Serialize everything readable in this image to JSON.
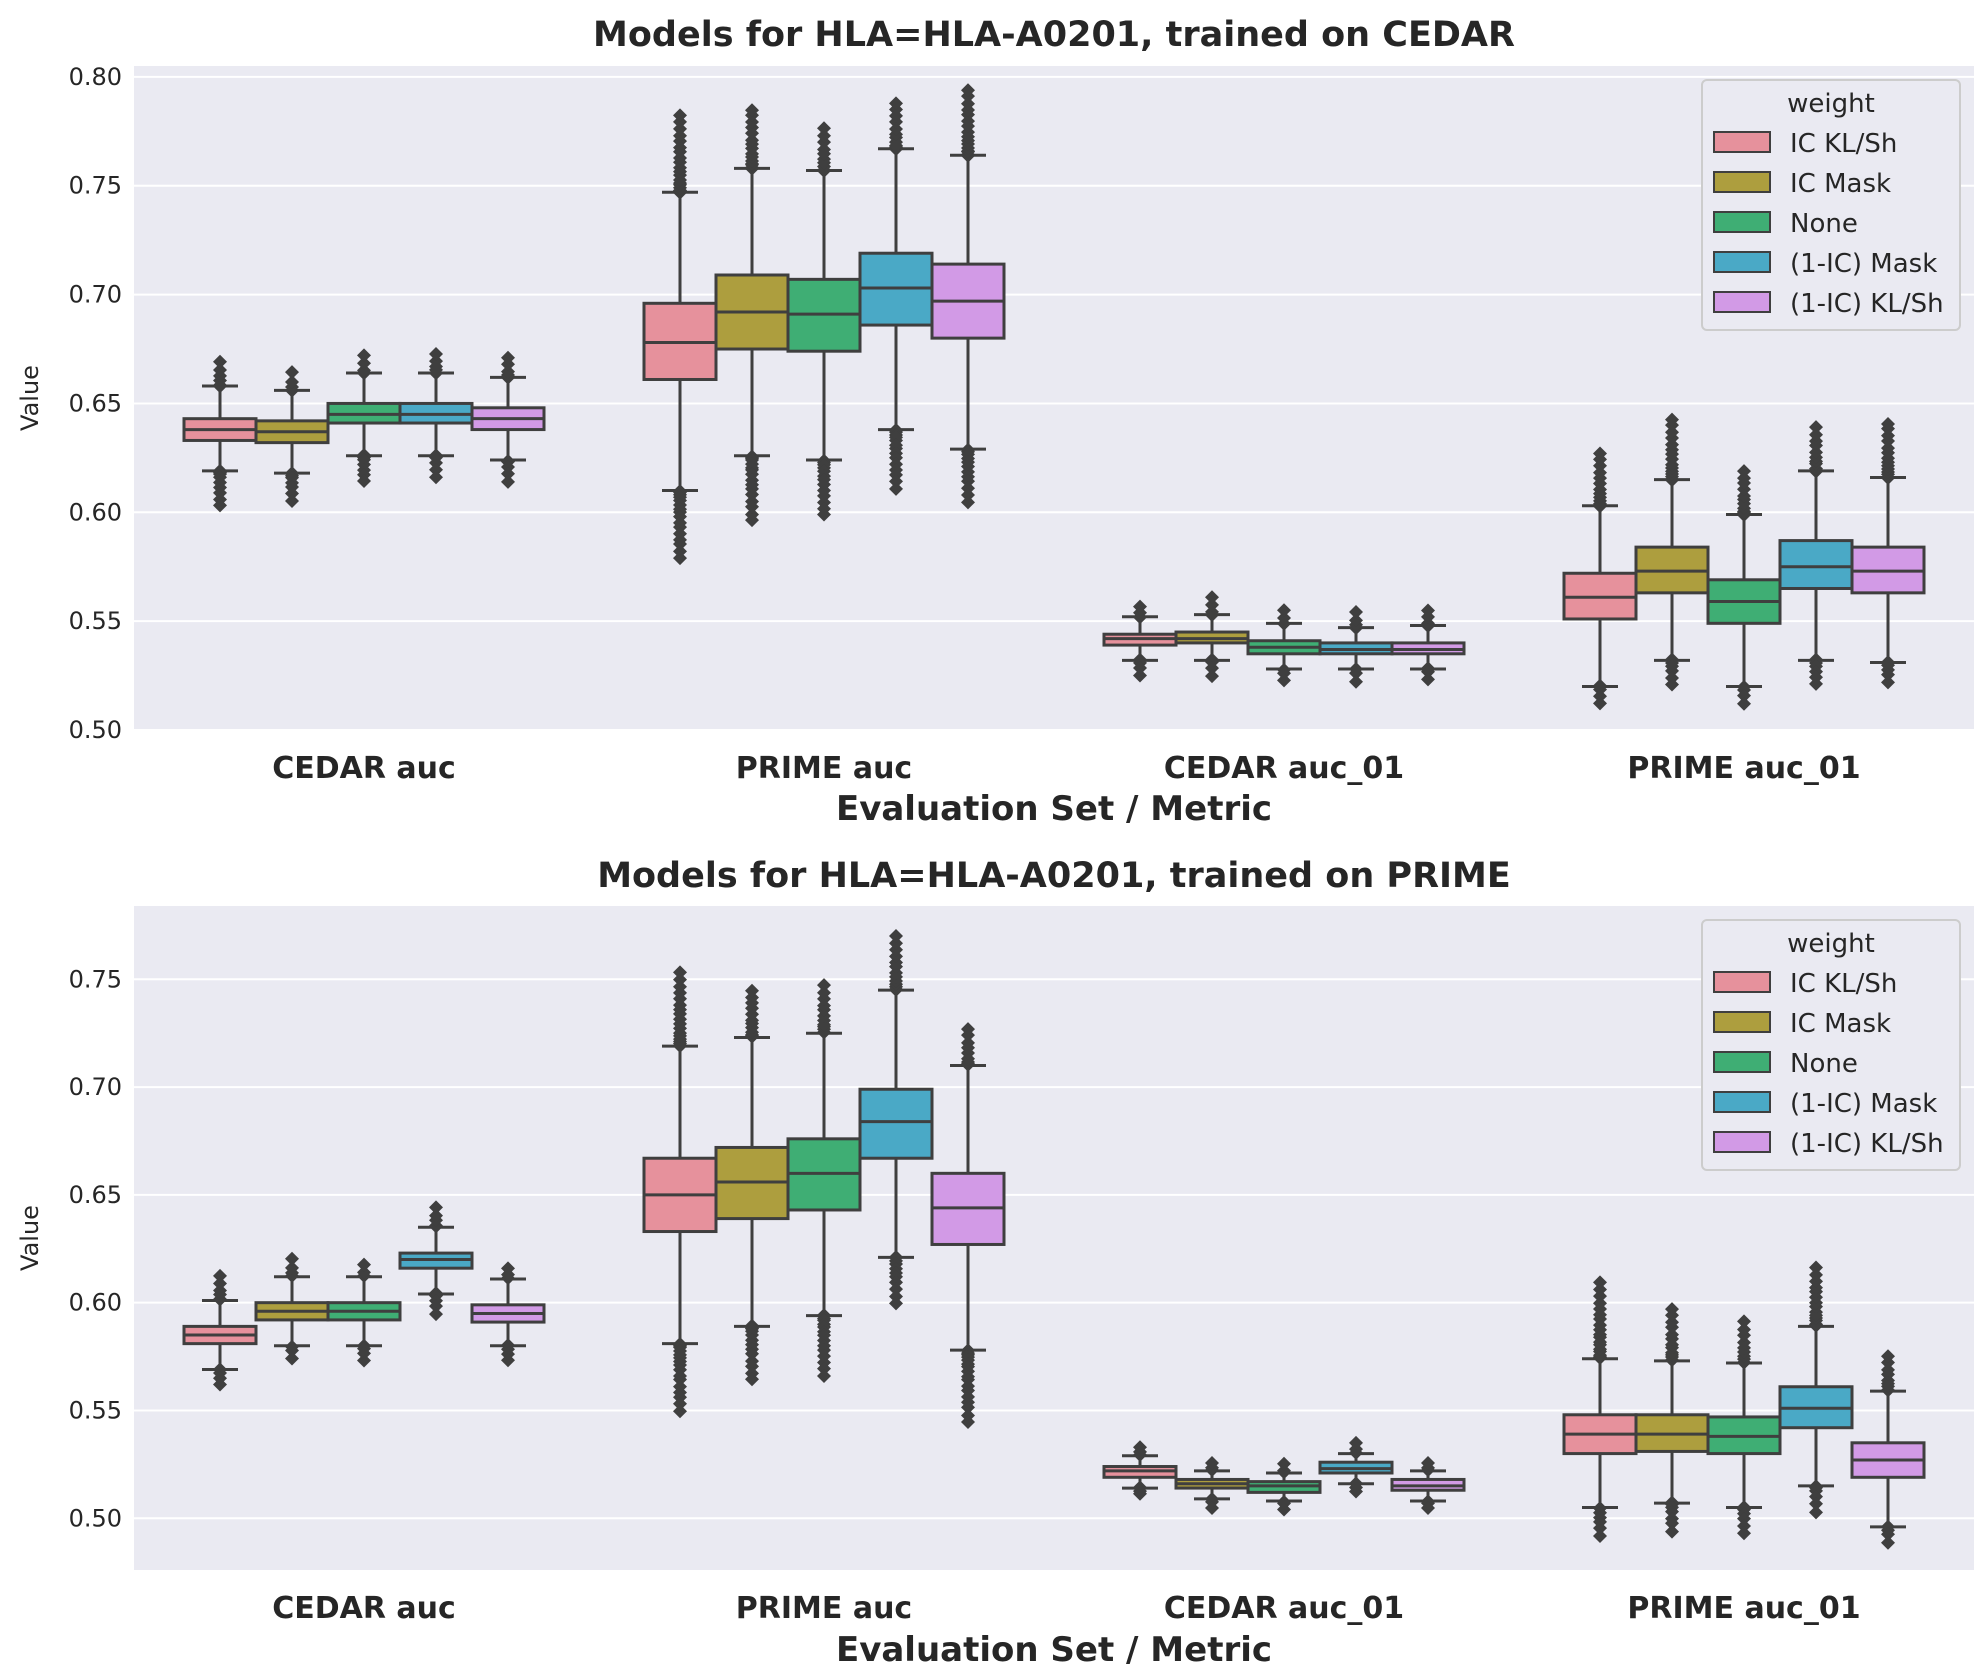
{
  "figure": {
    "background": "#ffffff",
    "axes_background": "#eaeaf2",
    "grid_color": "#ffffff",
    "line_color": "#3f3f3f"
  },
  "legend": {
    "title": "weight",
    "placement": "upper right",
    "entries": [
      {
        "label": "IC KL/Sh",
        "color": "#e6919c"
      },
      {
        "label": "IC Mask",
        "color": "#ad9e3e"
      },
      {
        "label": "None",
        "color": "#3fae74"
      },
      {
        "label": "(1-IC) Mask",
        "color": "#4aa9c6"
      },
      {
        "label": "(1-IC) KL/Sh",
        "color": "#d29ae6"
      }
    ]
  },
  "chart_data": [
    {
      "type": "box",
      "title": "Models for HLA=HLA-A0201, trained on CEDAR",
      "xlabel": "Evaluation Set / Metric",
      "ylabel": "Value",
      "ylim": [
        0.5,
        0.805
      ],
      "yticks": [
        "0.50",
        "0.55",
        "0.60",
        "0.65",
        "0.70",
        "0.75",
        "0.80"
      ],
      "grid": true,
      "categories": [
        "CEDAR auc",
        "PRIME auc",
        "CEDAR auc_01",
        "PRIME auc_01"
      ],
      "series": [
        {
          "name": "IC KL/Sh",
          "boxes": [
            {
              "q1": 0.633,
              "median": 0.638,
              "q3": 0.643,
              "whisker_low": 0.619,
              "whisker_high": 0.658,
              "flier_min": 0.603,
              "flier_max": 0.669
            },
            {
              "q1": 0.661,
              "median": 0.678,
              "q3": 0.696,
              "whisker_low": 0.61,
              "whisker_high": 0.747,
              "flier_min": 0.579,
              "flier_max": 0.782
            },
            {
              "q1": 0.539,
              "median": 0.542,
              "q3": 0.544,
              "whisker_low": 0.532,
              "whisker_high": 0.552,
              "flier_min": 0.525,
              "flier_max": 0.557
            },
            {
              "q1": 0.551,
              "median": 0.561,
              "q3": 0.572,
              "whisker_low": 0.52,
              "whisker_high": 0.603,
              "flier_min": 0.512,
              "flier_max": 0.627
            }
          ]
        },
        {
          "name": "IC Mask",
          "boxes": [
            {
              "q1": 0.632,
              "median": 0.637,
              "q3": 0.642,
              "whisker_low": 0.618,
              "whisker_high": 0.656,
              "flier_min": 0.605,
              "flier_max": 0.664
            },
            {
              "q1": 0.675,
              "median": 0.692,
              "q3": 0.709,
              "whisker_low": 0.626,
              "whisker_high": 0.758,
              "flier_min": 0.596,
              "flier_max": 0.785
            },
            {
              "q1": 0.54,
              "median": 0.542,
              "q3": 0.545,
              "whisker_low": 0.532,
              "whisker_high": 0.553,
              "flier_min": 0.525,
              "flier_max": 0.561
            },
            {
              "q1": 0.563,
              "median": 0.573,
              "q3": 0.584,
              "whisker_low": 0.532,
              "whisker_high": 0.615,
              "flier_min": 0.521,
              "flier_max": 0.643
            }
          ]
        },
        {
          "name": "None",
          "boxes": [
            {
              "q1": 0.641,
              "median": 0.645,
              "q3": 0.65,
              "whisker_low": 0.626,
              "whisker_high": 0.664,
              "flier_min": 0.614,
              "flier_max": 0.672
            },
            {
              "q1": 0.674,
              "median": 0.691,
              "q3": 0.707,
              "whisker_low": 0.624,
              "whisker_high": 0.757,
              "flier_min": 0.599,
              "flier_max": 0.776
            },
            {
              "q1": 0.535,
              "median": 0.538,
              "q3": 0.541,
              "whisker_low": 0.528,
              "whisker_high": 0.549,
              "flier_min": 0.523,
              "flier_max": 0.555
            },
            {
              "q1": 0.549,
              "median": 0.559,
              "q3": 0.569,
              "whisker_low": 0.52,
              "whisker_high": 0.599,
              "flier_min": 0.512,
              "flier_max": 0.619
            }
          ]
        },
        {
          "name": "(1-IC) Mask",
          "boxes": [
            {
              "q1": 0.641,
              "median": 0.645,
              "q3": 0.65,
              "whisker_low": 0.626,
              "whisker_high": 0.664,
              "flier_min": 0.616,
              "flier_max": 0.673
            },
            {
              "q1": 0.686,
              "median": 0.703,
              "q3": 0.719,
              "whisker_low": 0.638,
              "whisker_high": 0.767,
              "flier_min": 0.611,
              "flier_max": 0.788
            },
            {
              "q1": 0.535,
              "median": 0.537,
              "q3": 0.54,
              "whisker_low": 0.528,
              "whisker_high": 0.547,
              "flier_min": 0.522,
              "flier_max": 0.554
            },
            {
              "q1": 0.565,
              "median": 0.575,
              "q3": 0.587,
              "whisker_low": 0.532,
              "whisker_high": 0.619,
              "flier_min": 0.521,
              "flier_max": 0.639
            }
          ]
        },
        {
          "name": "(1-IC) KL/Sh",
          "boxes": [
            {
              "q1": 0.638,
              "median": 0.643,
              "q3": 0.648,
              "whisker_low": 0.624,
              "whisker_high": 0.662,
              "flier_min": 0.614,
              "flier_max": 0.671
            },
            {
              "q1": 0.68,
              "median": 0.697,
              "q3": 0.714,
              "whisker_low": 0.629,
              "whisker_high": 0.764,
              "flier_min": 0.605,
              "flier_max": 0.794
            },
            {
              "q1": 0.535,
              "median": 0.537,
              "q3": 0.54,
              "whisker_low": 0.528,
              "whisker_high": 0.548,
              "flier_min": 0.523,
              "flier_max": 0.555
            },
            {
              "q1": 0.563,
              "median": 0.573,
              "q3": 0.584,
              "whisker_low": 0.531,
              "whisker_high": 0.616,
              "flier_min": 0.522,
              "flier_max": 0.641
            }
          ]
        }
      ]
    },
    {
      "type": "box",
      "title": "Models for HLA=HLA-A0201, trained on PRIME",
      "xlabel": "Evaluation Set / Metric",
      "ylabel": "Value",
      "ylim": [
        0.476,
        0.784
      ],
      "yticks": [
        "0.50",
        "0.55",
        "0.60",
        "0.65",
        "0.70",
        "0.75"
      ],
      "grid": true,
      "categories": [
        "CEDAR auc",
        "PRIME auc",
        "CEDAR auc_01",
        "PRIME auc_01"
      ],
      "series": [
        {
          "name": "IC KL/Sh",
          "boxes": [
            {
              "q1": 0.581,
              "median": 0.585,
              "q3": 0.589,
              "whisker_low": 0.569,
              "whisker_high": 0.601,
              "flier_min": 0.562,
              "flier_max": 0.612
            },
            {
              "q1": 0.633,
              "median": 0.65,
              "q3": 0.667,
              "whisker_low": 0.581,
              "whisker_high": 0.719,
              "flier_min": 0.55,
              "flier_max": 0.753
            },
            {
              "q1": 0.519,
              "median": 0.522,
              "q3": 0.524,
              "whisker_low": 0.514,
              "whisker_high": 0.529,
              "flier_min": 0.511,
              "flier_max": 0.533
            },
            {
              "q1": 0.53,
              "median": 0.539,
              "q3": 0.548,
              "whisker_low": 0.505,
              "whisker_high": 0.574,
              "flier_min": 0.492,
              "flier_max": 0.609
            }
          ]
        },
        {
          "name": "IC Mask",
          "boxes": [
            {
              "q1": 0.592,
              "median": 0.596,
              "q3": 0.6,
              "whisker_low": 0.58,
              "whisker_high": 0.612,
              "flier_min": 0.574,
              "flier_max": 0.62
            },
            {
              "q1": 0.639,
              "median": 0.656,
              "q3": 0.672,
              "whisker_low": 0.589,
              "whisker_high": 0.723,
              "flier_min": 0.564,
              "flier_max": 0.745
            },
            {
              "q1": 0.514,
              "median": 0.516,
              "q3": 0.518,
              "whisker_low": 0.509,
              "whisker_high": 0.522,
              "flier_min": 0.505,
              "flier_max": 0.526
            },
            {
              "q1": 0.531,
              "median": 0.539,
              "q3": 0.548,
              "whisker_low": 0.507,
              "whisker_high": 0.573,
              "flier_min": 0.494,
              "flier_max": 0.597
            }
          ]
        },
        {
          "name": "None",
          "boxes": [
            {
              "q1": 0.592,
              "median": 0.596,
              "q3": 0.6,
              "whisker_low": 0.58,
              "whisker_high": 0.612,
              "flier_min": 0.573,
              "flier_max": 0.618
            },
            {
              "q1": 0.643,
              "median": 0.66,
              "q3": 0.676,
              "whisker_low": 0.594,
              "whisker_high": 0.725,
              "flier_min": 0.566,
              "flier_max": 0.747
            },
            {
              "q1": 0.512,
              "median": 0.515,
              "q3": 0.517,
              "whisker_low": 0.508,
              "whisker_high": 0.521,
              "flier_min": 0.504,
              "flier_max": 0.525
            },
            {
              "q1": 0.53,
              "median": 0.538,
              "q3": 0.547,
              "whisker_low": 0.505,
              "whisker_high": 0.572,
              "flier_min": 0.493,
              "flier_max": 0.591
            }
          ]
        },
        {
          "name": "(1-IC) Mask",
          "boxes": [
            {
              "q1": 0.616,
              "median": 0.62,
              "q3": 0.623,
              "whisker_low": 0.604,
              "whisker_high": 0.635,
              "flier_min": 0.595,
              "flier_max": 0.644
            },
            {
              "q1": 0.667,
              "median": 0.684,
              "q3": 0.699,
              "whisker_low": 0.621,
              "whisker_high": 0.745,
              "flier_min": 0.6,
              "flier_max": 0.77
            },
            {
              "q1": 0.521,
              "median": 0.523,
              "q3": 0.526,
              "whisker_low": 0.516,
              "whisker_high": 0.53,
              "flier_min": 0.512,
              "flier_max": 0.535
            },
            {
              "q1": 0.542,
              "median": 0.551,
              "q3": 0.561,
              "whisker_low": 0.515,
              "whisker_high": 0.589,
              "flier_min": 0.503,
              "flier_max": 0.616
            }
          ]
        },
        {
          "name": "(1-IC) KL/Sh",
          "boxes": [
            {
              "q1": 0.591,
              "median": 0.595,
              "q3": 0.599,
              "whisker_low": 0.58,
              "whisker_high": 0.611,
              "flier_min": 0.573,
              "flier_max": 0.616
            },
            {
              "q1": 0.627,
              "median": 0.644,
              "q3": 0.66,
              "whisker_low": 0.578,
              "whisker_high": 0.71,
              "flier_min": 0.545,
              "flier_max": 0.727
            },
            {
              "q1": 0.513,
              "median": 0.515,
              "q3": 0.518,
              "whisker_low": 0.508,
              "whisker_high": 0.522,
              "flier_min": 0.505,
              "flier_max": 0.526
            },
            {
              "q1": 0.519,
              "median": 0.527,
              "q3": 0.535,
              "whisker_low": 0.496,
              "whisker_high": 0.559,
              "flier_min": 0.489,
              "flier_max": 0.575
            }
          ]
        }
      ]
    }
  ]
}
